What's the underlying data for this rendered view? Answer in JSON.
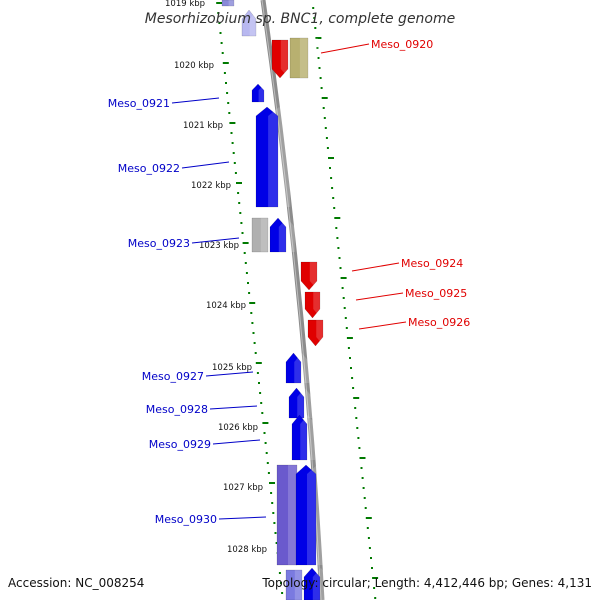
{
  "title": "Mesorhizobium sp. BNC1, complete genome",
  "footer": {
    "accession": "Accession: NC_008254",
    "stats": "Topology: circular; Length: 4,412,446 bp; Genes: 4,131"
  },
  "colors": {
    "forward_cds": "#e00000",
    "forward_other": "#b8b070",
    "reverse_cds": "#0000e6",
    "reverse_other": "#6a5acd",
    "pseudo": "#b0b0b0",
    "backbone": "#8c8c8c",
    "ticks": "#007a00",
    "label_forward": "#e00000",
    "label_reverse": "#0000c8"
  },
  "ticks": [
    "1019 kbp",
    "1020 kbp",
    "1021 kbp",
    "1022 kbp",
    "1023 kbp",
    "1024 kbp",
    "1025 kbp",
    "1026 kbp",
    "1027 kbp",
    "1028 kbp"
  ],
  "gene_labels": [
    {
      "name": "Meso_0920",
      "strand": "forward"
    },
    {
      "name": "Meso_0921",
      "strand": "reverse"
    },
    {
      "name": "Meso_0922",
      "strand": "reverse"
    },
    {
      "name": "Meso_0923",
      "strand": "reverse"
    },
    {
      "name": "Meso_0924",
      "strand": "forward"
    },
    {
      "name": "Meso_0925",
      "strand": "forward"
    },
    {
      "name": "Meso_0926",
      "strand": "forward"
    },
    {
      "name": "Meso_0927",
      "strand": "reverse"
    },
    {
      "name": "Meso_0928",
      "strand": "reverse"
    },
    {
      "name": "Meso_0929",
      "strand": "reverse"
    },
    {
      "name": "Meso_0930",
      "strand": "reverse"
    }
  ]
}
